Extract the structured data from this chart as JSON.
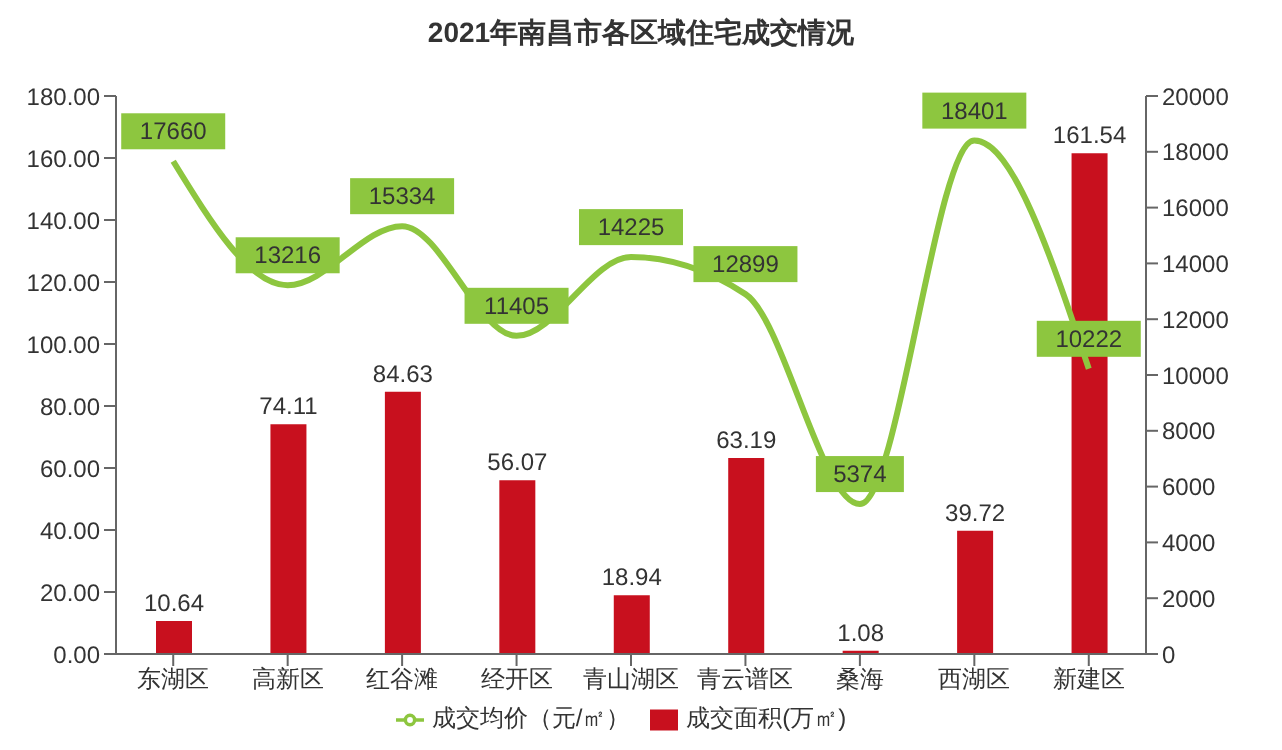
{
  "chart_data": {
    "type": "bar",
    "title": "2021年南昌市各区域住宅成交情况",
    "categories": [
      "东湖区",
      "高新区",
      "红谷滩",
      "经开区",
      "青山湖区",
      "青云谱区",
      "桑海",
      "西湖区",
      "新建区"
    ],
    "series": [
      {
        "name": "成交面积(万㎡)",
        "color": "#c8101e",
        "values": [
          10.64,
          74.11,
          84.63,
          56.07,
          18.94,
          63.19,
          1.08,
          39.72,
          161.54
        ]
      },
      {
        "name": "成交均价（元/㎡）",
        "type": "line",
        "axis": "y2",
        "color": "#8dc63f",
        "values": [
          17660,
          13216,
          15334,
          11405,
          14225,
          12899,
          5374,
          18401,
          10222
        ]
      }
    ],
    "ylim": [
      0,
      180
    ],
    "yticks": [
      {
        "value": 0,
        "label": "0.00"
      },
      {
        "value": 20,
        "label": "20.00"
      },
      {
        "value": 40,
        "label": "40.00"
      },
      {
        "value": 60,
        "label": "60.00"
      },
      {
        "value": 80,
        "label": "80.00"
      },
      {
        "value": 100,
        "label": "100.00"
      },
      {
        "value": 120,
        "label": "120.00"
      },
      {
        "value": 140,
        "label": "140.00"
      },
      {
        "value": 160,
        "label": "160.00"
      },
      {
        "value": 180,
        "label": "180.00"
      }
    ],
    "y2lim": [
      0,
      20000
    ],
    "y2ticks": [
      0,
      2000,
      4000,
      6000,
      8000,
      10000,
      12000,
      14000,
      16000,
      18000,
      20000
    ],
    "data_labels": true,
    "grid": false,
    "legend": "bottom",
    "marker": "none"
  }
}
